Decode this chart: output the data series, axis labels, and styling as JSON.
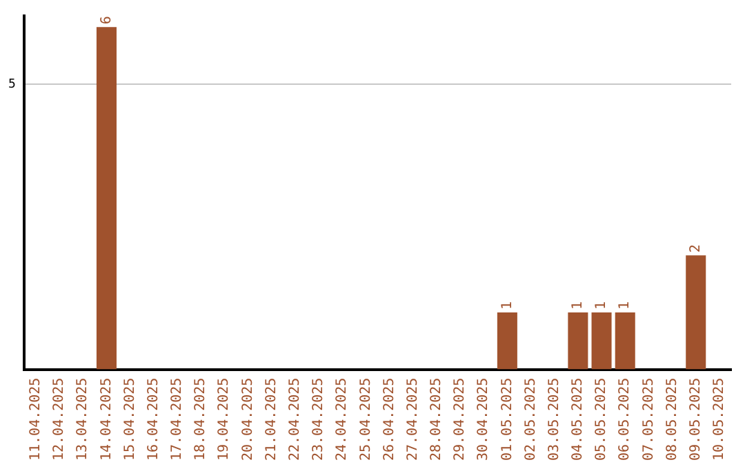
{
  "chart_data": {
    "type": "bar",
    "categories": [
      "11.04.2025",
      "12.04.2025",
      "13.04.2025",
      "14.04.2025",
      "15.04.2025",
      "16.04.2025",
      "17.04.2025",
      "18.04.2025",
      "19.04.2025",
      "20.04.2025",
      "21.04.2025",
      "22.04.2025",
      "23.04.2025",
      "24.04.2025",
      "25.04.2025",
      "26.04.2025",
      "27.04.2025",
      "28.04.2025",
      "29.04.2025",
      "30.04.2025",
      "01.05.2025",
      "02.05.2025",
      "03.05.2025",
      "04.05.2025",
      "05.05.2025",
      "06.05.2025",
      "07.05.2025",
      "08.05.2025",
      "09.05.2025",
      "10.05.2025"
    ],
    "values": [
      0,
      0,
      0,
      6,
      0,
      0,
      0,
      0,
      0,
      0,
      0,
      0,
      0,
      0,
      0,
      0,
      0,
      0,
      0,
      0,
      1,
      0,
      0,
      1,
      1,
      1,
      0,
      0,
      2,
      0
    ],
    "value_labels": [
      null,
      null,
      null,
      "6",
      null,
      null,
      null,
      null,
      null,
      null,
      null,
      null,
      null,
      null,
      null,
      null,
      null,
      null,
      null,
      null,
      "1",
      null,
      null,
      "1",
      "1",
      "1",
      null,
      null,
      "2",
      null
    ],
    "color": "#a0522d",
    "ylim": [
      0,
      6.2
    ],
    "yticks": [
      5
    ],
    "grid": "y",
    "legend": false
  }
}
